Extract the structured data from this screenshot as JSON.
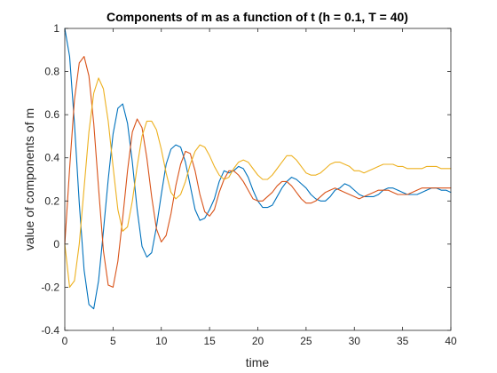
{
  "chart_data": {
    "type": "line",
    "title": "Components of m as a function of t (h = 0.1, T = 40)",
    "xlabel": "time",
    "ylabel": "value of components of m",
    "xlim": [
      0,
      40
    ],
    "ylim": [
      -0.4,
      1
    ],
    "xticks": [
      0,
      5,
      10,
      15,
      20,
      25,
      30,
      35,
      40
    ],
    "yticks": [
      -0.4,
      -0.2,
      0,
      0.2,
      0.4,
      0.6,
      0.8,
      1
    ],
    "xtick_labels": [
      "0",
      "5",
      "10",
      "15",
      "20",
      "25",
      "30",
      "35",
      "40"
    ],
    "ytick_labels": [
      "-0.4",
      "-0.2",
      "0",
      "0.2",
      "0.4",
      "0.6",
      "0.8",
      "1"
    ],
    "grid": false,
    "legend": "none",
    "series": [
      {
        "color": "#0072BD",
        "x": [
          0,
          0.5,
          1,
          1.5,
          2,
          2.5,
          3,
          3.5,
          4,
          4.5,
          5,
          5.5,
          6,
          6.5,
          7,
          7.5,
          8,
          8.5,
          9,
          9.5,
          10,
          10.5,
          11,
          11.5,
          12,
          12.5,
          13,
          13.5,
          14,
          14.5,
          15,
          15.5,
          16,
          16.5,
          17,
          17.5,
          18,
          18.5,
          19,
          19.5,
          20,
          20.5,
          21,
          21.5,
          22,
          22.5,
          23,
          23.5,
          24,
          24.5,
          25,
          25.5,
          26,
          26.5,
          27,
          27.5,
          28,
          28.5,
          29,
          29.5,
          30,
          30.5,
          31,
          31.5,
          32,
          32.5,
          33,
          33.5,
          34,
          34.5,
          35,
          35.5,
          36,
          36.5,
          37,
          37.5,
          38,
          38.5,
          39,
          39.5,
          40
        ],
        "values": [
          1.0,
          0.87,
          0.56,
          0.19,
          -0.12,
          -0.28,
          -0.3,
          -0.17,
          0.06,
          0.3,
          0.51,
          0.63,
          0.65,
          0.56,
          0.38,
          0.16,
          -0.01,
          -0.06,
          -0.04,
          0.08,
          0.23,
          0.37,
          0.44,
          0.46,
          0.45,
          0.38,
          0.27,
          0.16,
          0.11,
          0.12,
          0.16,
          0.21,
          0.29,
          0.34,
          0.33,
          0.34,
          0.36,
          0.35,
          0.31,
          0.25,
          0.2,
          0.17,
          0.17,
          0.18,
          0.22,
          0.26,
          0.29,
          0.31,
          0.3,
          0.28,
          0.26,
          0.23,
          0.21,
          0.2,
          0.2,
          0.22,
          0.25,
          0.26,
          0.28,
          0.27,
          0.25,
          0.23,
          0.22,
          0.22,
          0.22,
          0.23,
          0.25,
          0.26,
          0.26,
          0.25,
          0.24,
          0.23,
          0.23,
          0.23,
          0.24,
          0.25,
          0.26,
          0.26,
          0.25,
          0.25,
          0.24
        ]
      },
      {
        "color": "#D95319",
        "x": [
          0,
          0.5,
          1,
          1.5,
          2,
          2.5,
          3,
          3.5,
          4,
          4.5,
          5,
          5.5,
          6,
          6.5,
          7,
          7.5,
          8,
          8.5,
          9,
          9.5,
          10,
          10.5,
          11,
          11.5,
          12,
          12.5,
          13,
          13.5,
          14,
          14.5,
          15,
          15.5,
          16,
          16.5,
          17,
          17.5,
          18,
          18.5,
          19,
          19.5,
          20,
          20.5,
          21,
          21.5,
          22,
          22.5,
          23,
          23.5,
          24,
          24.5,
          25,
          25.5,
          26,
          26.5,
          27,
          27.5,
          28,
          28.5,
          29,
          29.5,
          30,
          30.5,
          31,
          31.5,
          32,
          32.5,
          33,
          33.5,
          34,
          34.5,
          35,
          35.5,
          36,
          36.5,
          37,
          37.5,
          38,
          38.5,
          39,
          39.5,
          40
        ],
        "values": [
          0.0,
          0.35,
          0.67,
          0.84,
          0.87,
          0.78,
          0.56,
          0.26,
          -0.03,
          -0.19,
          -0.2,
          -0.08,
          0.12,
          0.34,
          0.52,
          0.58,
          0.54,
          0.4,
          0.22,
          0.07,
          0.01,
          0.04,
          0.14,
          0.27,
          0.37,
          0.43,
          0.42,
          0.34,
          0.23,
          0.15,
          0.13,
          0.16,
          0.24,
          0.3,
          0.34,
          0.34,
          0.32,
          0.29,
          0.25,
          0.21,
          0.2,
          0.2,
          0.22,
          0.24,
          0.27,
          0.29,
          0.29,
          0.27,
          0.24,
          0.21,
          0.19,
          0.19,
          0.2,
          0.22,
          0.24,
          0.25,
          0.26,
          0.25,
          0.24,
          0.23,
          0.22,
          0.21,
          0.22,
          0.23,
          0.24,
          0.25,
          0.25,
          0.25,
          0.24,
          0.23,
          0.23,
          0.23,
          0.24,
          0.25,
          0.26,
          0.26,
          0.26,
          0.26,
          0.26,
          0.26,
          0.26
        ]
      },
      {
        "color": "#EDB120",
        "x": [
          0,
          0.5,
          1,
          1.5,
          2,
          2.5,
          3,
          3.5,
          4,
          4.5,
          5,
          5.5,
          6,
          6.5,
          7,
          7.5,
          8,
          8.5,
          9,
          9.5,
          10,
          10.5,
          11,
          11.5,
          12,
          12.5,
          13,
          13.5,
          14,
          14.5,
          15,
          15.5,
          16,
          16.5,
          17,
          17.5,
          18,
          18.5,
          19,
          19.5,
          20,
          20.5,
          21,
          21.5,
          22,
          22.5,
          23,
          23.5,
          24,
          24.5,
          25,
          25.5,
          26,
          26.5,
          27,
          27.5,
          28,
          28.5,
          29,
          29.5,
          30,
          30.5,
          31,
          31.5,
          32,
          32.5,
          33,
          33.5,
          34,
          34.5,
          35,
          35.5,
          36,
          36.5,
          37,
          37.5,
          38,
          38.5,
          39,
          39.5,
          40
        ],
        "values": [
          0.0,
          -0.2,
          -0.17,
          0.0,
          0.26,
          0.52,
          0.7,
          0.77,
          0.72,
          0.57,
          0.36,
          0.16,
          0.06,
          0.08,
          0.2,
          0.36,
          0.5,
          0.57,
          0.57,
          0.53,
          0.44,
          0.33,
          0.24,
          0.21,
          0.23,
          0.29,
          0.37,
          0.43,
          0.46,
          0.45,
          0.41,
          0.36,
          0.32,
          0.3,
          0.31,
          0.35,
          0.38,
          0.39,
          0.38,
          0.35,
          0.32,
          0.3,
          0.3,
          0.32,
          0.35,
          0.38,
          0.41,
          0.41,
          0.39,
          0.36,
          0.33,
          0.32,
          0.32,
          0.33,
          0.35,
          0.37,
          0.38,
          0.38,
          0.37,
          0.36,
          0.34,
          0.34,
          0.33,
          0.34,
          0.35,
          0.36,
          0.37,
          0.37,
          0.37,
          0.36,
          0.36,
          0.35,
          0.35,
          0.35,
          0.35,
          0.36,
          0.36,
          0.36,
          0.35,
          0.35,
          0.35
        ]
      }
    ]
  }
}
